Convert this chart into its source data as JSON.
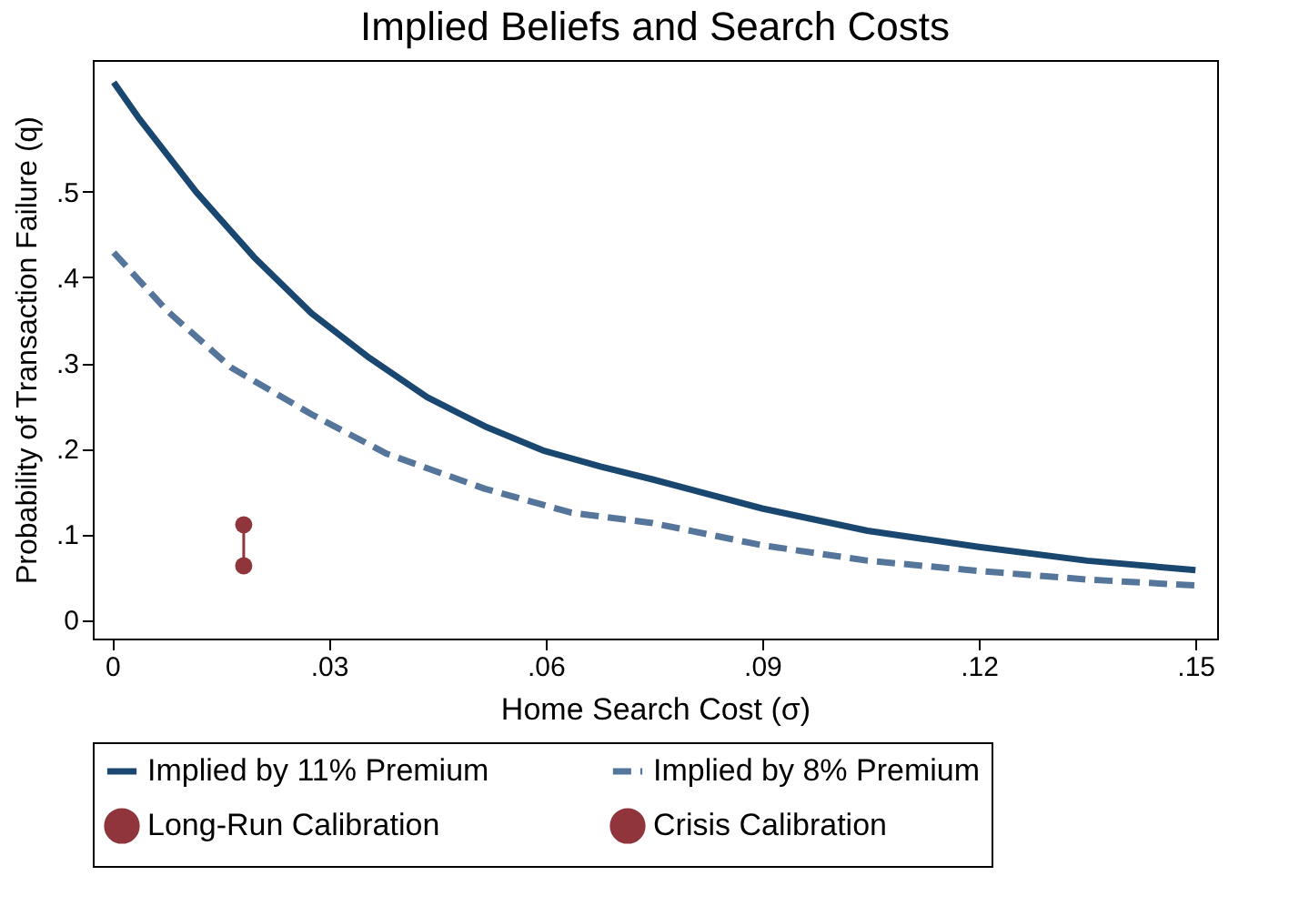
{
  "chart_data": {
    "type": "line",
    "title": "Implied Beliefs and Search Costs",
    "xlabel": "Home Search Cost (σ)",
    "ylabel": "Probability of Transaction Failure (q)",
    "xlim": [
      -0.0027,
      0.153
    ],
    "ylim": [
      -0.022,
      0.654
    ],
    "xticks": [
      0,
      {
        "value": 0.03,
        "label": ".03"
      },
      {
        "value": 0.06,
        "label": ".06"
      },
      {
        "value": 0.09,
        "label": ".09"
      },
      {
        "value": 0.12,
        "label": ".12"
      },
      {
        "value": 0.15,
        "label": ".15"
      }
    ],
    "yticks": [
      0,
      {
        "value": 0.1,
        "label": ".1"
      },
      {
        "value": 0.2,
        "label": ".2"
      },
      {
        "value": 0.3,
        "label": ".3"
      },
      {
        "value": 0.4,
        "label": ".4"
      },
      {
        "value": 0.5,
        "label": ".5"
      }
    ],
    "grid": false,
    "legend": "bottom",
    "series": [
      {
        "name": "Implied by 11% Premium",
        "line_style": "solid",
        "marker": "none",
        "color": "#1a476f",
        "x": [
          0.0002,
          0.0036,
          0.0116,
          0.0196,
          0.0276,
          0.0356,
          0.0436,
          0.0516,
          0.0596,
          0.0676,
          0.0748,
          0.09,
          0.1046,
          0.12,
          0.135,
          0.15
        ],
        "values": [
          0.628,
          0.587,
          0.5,
          0.424,
          0.358,
          0.306,
          0.26,
          0.226,
          0.198,
          0.179,
          0.164,
          0.13,
          0.104,
          0.085,
          0.069,
          0.058
        ]
      },
      {
        "name": "Implied by 8% Premium",
        "line_style": "dashed",
        "marker": "none",
        "color": "#55759b",
        "x": [
          0.0002,
          0.0076,
          0.0164,
          0.0276,
          0.038,
          0.0516,
          0.0636,
          0.0748,
          0.09,
          0.1046,
          0.12,
          0.135,
          0.15
        ],
        "values": [
          0.429,
          0.361,
          0.295,
          0.24,
          0.194,
          0.153,
          0.125,
          0.113,
          0.087,
          0.069,
          0.057,
          0.047,
          0.04
        ]
      },
      {
        "name": "Long-Run Calibration",
        "type": "scatter",
        "marker": "circle",
        "color": "#90353b",
        "x": [
          0.0182
        ],
        "values": [
          0.063
        ]
      },
      {
        "name": "Crisis Calibration",
        "type": "scatter",
        "marker": "circle",
        "color": "#90353b",
        "x": [
          0.0182
        ],
        "values": [
          0.111
        ]
      },
      {
        "line_style": "solid",
        "marker": "none",
        "color": "#90353b",
        "x": [
          0.0182,
          0.0182
        ],
        "values": [
          0.063,
          0.111
        ]
      }
    ]
  }
}
